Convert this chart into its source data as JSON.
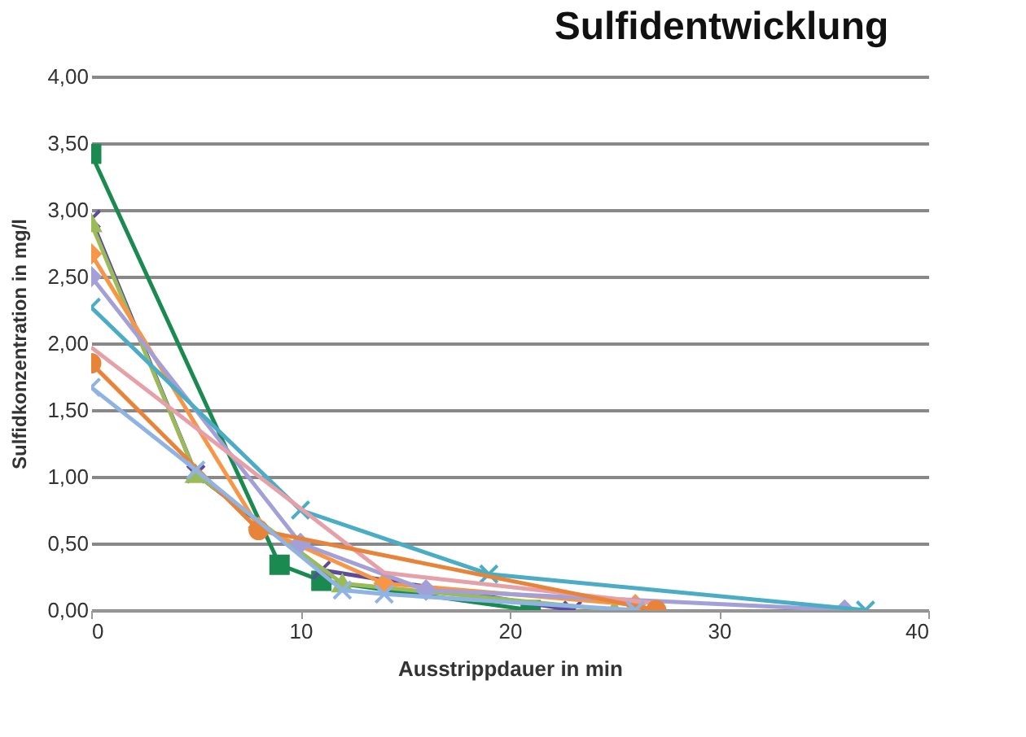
{
  "chart_data": {
    "type": "line",
    "title": "Sulfidentwicklung",
    "xlabel": "Ausstrippdauer in min",
    "ylabel": "Sulfidkonzentration in mg/l",
    "xlim": [
      0,
      40
    ],
    "xticks": [
      0,
      10,
      20,
      30,
      40
    ],
    "ylim": [
      0,
      4
    ],
    "yticks": [
      {
        "value": 0,
        "label": "0,00"
      },
      {
        "value": 0.5,
        "label": "0,50"
      },
      {
        "value": 1,
        "label": "1,00"
      },
      {
        "value": 1.5,
        "label": "1,50"
      },
      {
        "value": 2,
        "label": "2,00"
      },
      {
        "value": 2.5,
        "label": "2,50"
      },
      {
        "value": 3,
        "label": "3,00"
      },
      {
        "value": 3.5,
        "label": "3,50"
      },
      {
        "value": 4,
        "label": "4,00"
      }
    ],
    "grid": "y",
    "series": [
      {
        "color": "#1a8a50",
        "marker": "square",
        "x": [
          0,
          9,
          11,
          21
        ],
        "values": [
          3.42,
          0.34,
          0.22,
          0.0
        ]
      },
      {
        "color": "#5b4a9e",
        "marker": "cross",
        "x": [
          0,
          5,
          11,
          23
        ],
        "values": [
          2.93,
          1.02,
          0.3,
          0.0
        ]
      },
      {
        "color": "#9bbb59",
        "marker": "triangle",
        "x": [
          0,
          5,
          12,
          25
        ],
        "values": [
          2.9,
          1.02,
          0.2,
          0.0
        ]
      },
      {
        "color": "#f79646",
        "marker": "diamond",
        "x": [
          0,
          8,
          14,
          26
        ],
        "values": [
          2.67,
          0.62,
          0.2,
          0.04
        ]
      },
      {
        "color": "#a3a0d8",
        "marker": "diamond",
        "x": [
          0,
          10,
          16,
          36
        ],
        "values": [
          2.5,
          0.5,
          0.15,
          0.0
        ]
      },
      {
        "color": "#4bacc6",
        "marker": "cross",
        "x": [
          0,
          10,
          19,
          37
        ],
        "values": [
          2.27,
          0.75,
          0.27,
          0.0
        ]
      },
      {
        "color": "#e6a0a8",
        "marker": "none",
        "x": [
          0,
          14,
          27
        ],
        "values": [
          1.97,
          0.28,
          0.05
        ]
      },
      {
        "color": "#e8833a",
        "marker": "circle",
        "x": [
          0,
          8,
          27
        ],
        "values": [
          1.85,
          0.6,
          0.0
        ]
      },
      {
        "color": "#8fb4e3",
        "marker": "cross",
        "x": [
          0,
          5,
          12,
          14,
          26
        ],
        "values": [
          1.67,
          1.05,
          0.15,
          0.12,
          0.0
        ]
      }
    ]
  }
}
